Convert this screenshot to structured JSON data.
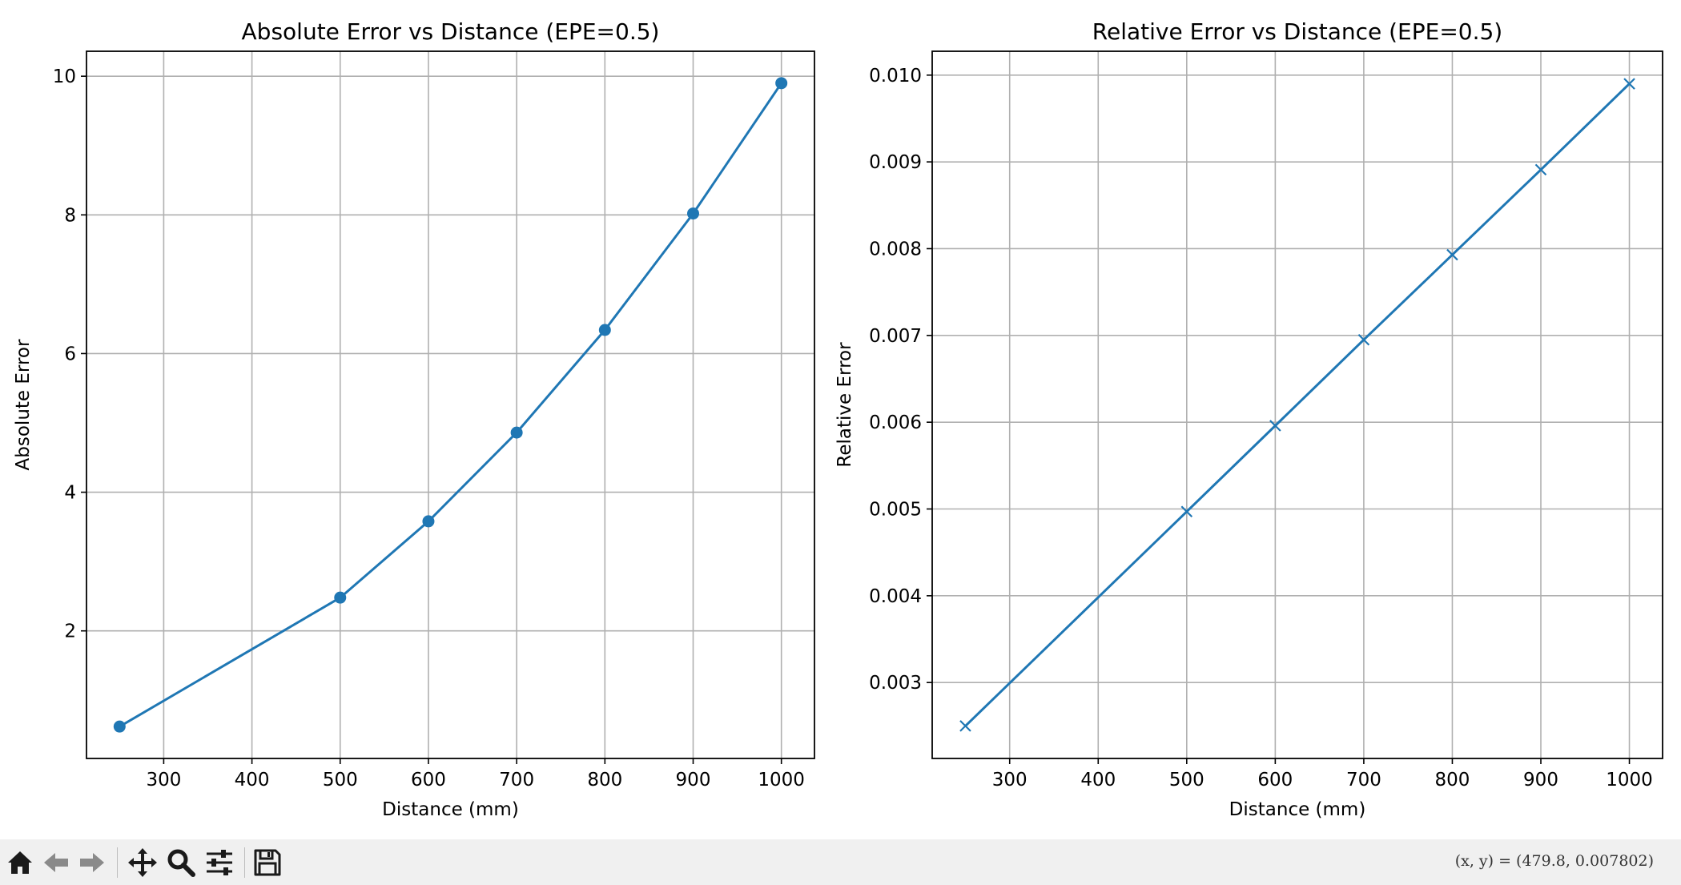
{
  "colors": {
    "series": "#1f77b4",
    "grid": "#b0b0b0",
    "toolbar_bg": "#f0f0f0",
    "icon": "#1a1a1a",
    "icon_disabled": "#8a8a8a"
  },
  "chart_data": [
    {
      "type": "line",
      "title": "Absolute Error vs Distance (EPE=0.5)",
      "xlabel": "Distance (mm)",
      "ylabel": "Absolute Error",
      "marker": "circle",
      "grid": true,
      "xlim": [
        212.5,
        1037.5
      ],
      "ylim": [
        0.16,
        10.36
      ],
      "xticks": [
        "300",
        "400",
        "500",
        "600",
        "700",
        "800",
        "900",
        "1000"
      ],
      "yticks": [
        "2",
        "4",
        "6",
        "8",
        "10"
      ],
      "series": [
        {
          "x": [
            250,
            500,
            600,
            700,
            800,
            900,
            1000
          ],
          "y": [
            0.62,
            2.48,
            3.58,
            4.86,
            6.34,
            8.02,
            9.9
          ]
        }
      ]
    },
    {
      "type": "line",
      "title": "Relative Error vs Distance (EPE=0.5)",
      "xlabel": "Distance (mm)",
      "ylabel": "Relative Error",
      "marker": "x",
      "grid": true,
      "xlim": [
        212.5,
        1037.5
      ],
      "ylim": [
        0.002125,
        0.010275
      ],
      "xticks": [
        "300",
        "400",
        "500",
        "600",
        "700",
        "800",
        "900",
        "1000"
      ],
      "yticks": [
        "0.003",
        "0.004",
        "0.005",
        "0.006",
        "0.007",
        "0.008",
        "0.009",
        "0.010"
      ],
      "series": [
        {
          "x": [
            250,
            500,
            600,
            700,
            800,
            900,
            1000
          ],
          "y": [
            0.0025,
            0.00497,
            0.00596,
            0.00695,
            0.00793,
            0.00891,
            0.0099
          ]
        }
      ]
    }
  ],
  "toolbar": {
    "buttons": [
      {
        "name": "home-button",
        "icon": "home-icon"
      },
      {
        "name": "back-button",
        "icon": "arrow-left-icon"
      },
      {
        "name": "forward-button",
        "icon": "arrow-right-icon"
      },
      {
        "name": "pan-button",
        "icon": "move-icon"
      },
      {
        "name": "zoom-button",
        "icon": "magnifier-icon"
      },
      {
        "name": "configure-subplots-button",
        "icon": "sliders-icon"
      },
      {
        "name": "save-button",
        "icon": "floppy-disk-icon"
      }
    ],
    "coordinates": "(x, y) = (479.8, 0.007802)"
  }
}
